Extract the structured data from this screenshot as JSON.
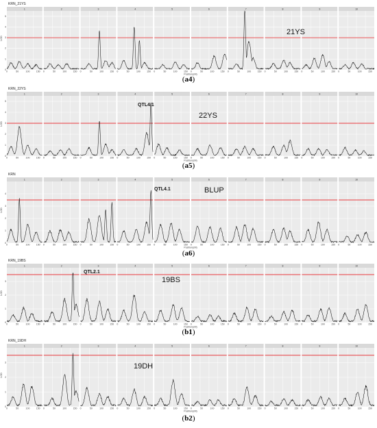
{
  "chart_data": [
    {
      "type": "line",
      "title": "KRN_21YS",
      "caption": "a4",
      "annotation": "21YS",
      "qtl_label": "",
      "xlabel": "Position(cM)",
      "ylabel": "LOD",
      "threshold": 3.0,
      "ylim": [
        0,
        5.5
      ],
      "yticks": [
        0,
        1,
        2,
        3,
        4,
        5
      ],
      "chromosomes": [
        "1",
        "2",
        "3",
        "4",
        "5",
        "6",
        "7",
        "8",
        "9",
        "10"
      ],
      "series_peaks": [
        [
          [
            20,
            0.6
          ],
          [
            60,
            0.7
          ],
          [
            100,
            0.5
          ],
          [
            140,
            0.4
          ]
        ],
        [
          [
            30,
            0.5
          ],
          [
            70,
            0.4
          ],
          [
            110,
            0.5
          ]
        ],
        [
          [
            40,
            0.5
          ],
          [
            90,
            3.5
          ],
          [
            120,
            0.8
          ],
          [
            150,
            0.6
          ]
        ],
        [
          [
            30,
            0.8
          ],
          [
            80,
            3.8
          ],
          [
            105,
            2.6
          ],
          [
            130,
            0.6
          ]
        ],
        [
          [
            40,
            0.4
          ],
          [
            100,
            0.7
          ],
          [
            140,
            0.4
          ]
        ],
        [
          [
            30,
            0.6
          ],
          [
            110,
            1.2
          ],
          [
            160,
            1.4
          ]
        ],
        [
          [
            40,
            0.5
          ],
          [
            80,
            5.4
          ],
          [
            100,
            2.5
          ],
          [
            120,
            1.0
          ]
        ],
        [
          [
            40,
            0.5
          ],
          [
            90,
            0.8
          ],
          [
            120,
            0.6
          ]
        ],
        [
          [
            20,
            0.4
          ],
          [
            60,
            1.0
          ],
          [
            100,
            1.3
          ],
          [
            130,
            0.7
          ]
        ],
        [
          [
            30,
            0.4
          ],
          [
            70,
            0.6
          ],
          [
            110,
            0.5
          ]
        ]
      ]
    },
    {
      "type": "line",
      "title": "KRN_22YS",
      "caption": "a5",
      "annotation": "22YS",
      "qtl_label": "QTL4.1",
      "xlabel": "Position(cM)",
      "ylabel": "LOD",
      "threshold": 3.0,
      "ylim": [
        0,
        5.5
      ],
      "yticks": [
        0,
        1,
        2,
        3,
        4,
        5
      ],
      "chromosomes": [
        "1",
        "2",
        "3",
        "4",
        "5",
        "6",
        "7",
        "8",
        "9",
        "10"
      ],
      "series_peaks": [
        [
          [
            20,
            0.8
          ],
          [
            60,
            2.5
          ],
          [
            100,
            0.9
          ],
          [
            140,
            0.6
          ]
        ],
        [
          [
            30,
            0.4
          ],
          [
            80,
            0.5
          ],
          [
            120,
            0.6
          ]
        ],
        [
          [
            40,
            0.7
          ],
          [
            90,
            3.1
          ],
          [
            120,
            1.0
          ],
          [
            150,
            0.5
          ]
        ],
        [
          [
            30,
            0.5
          ],
          [
            90,
            0.6
          ],
          [
            140,
            2.0
          ],
          [
            160,
            4.6
          ]
        ],
        [
          [
            20,
            1.0
          ],
          [
            60,
            0.7
          ],
          [
            120,
            0.5
          ]
        ],
        [
          [
            30,
            0.6
          ],
          [
            90,
            0.9
          ],
          [
            140,
            0.7
          ]
        ],
        [
          [
            40,
            0.6
          ],
          [
            80,
            0.8
          ],
          [
            120,
            0.6
          ]
        ],
        [
          [
            40,
            0.8
          ],
          [
            90,
            0.9
          ],
          [
            120,
            1.3
          ]
        ],
        [
          [
            30,
            0.6
          ],
          [
            80,
            0.6
          ],
          [
            120,
            0.5
          ]
        ],
        [
          [
            30,
            0.7
          ],
          [
            80,
            0.5
          ],
          [
            120,
            0.4
          ]
        ]
      ]
    },
    {
      "type": "line",
      "title": "KRN",
      "caption": "a6",
      "annotation": "BLUP",
      "qtl_label": "QTL4.1",
      "xlabel": "Position(cM)",
      "ylabel": "LOD",
      "threshold": 3.5,
      "ylim": [
        0,
        5.0
      ],
      "yticks": [
        0,
        1,
        2,
        3,
        4
      ],
      "chromosomes": [
        "1",
        "2",
        "3",
        "4",
        "5",
        "6",
        "7",
        "8",
        "9",
        "10"
      ],
      "series_peaks": [
        [
          [
            20,
            1.0
          ],
          [
            60,
            3.4
          ],
          [
            100,
            1.4
          ],
          [
            140,
            0.8
          ]
        ],
        [
          [
            30,
            0.9
          ],
          [
            80,
            1.0
          ],
          [
            120,
            0.8
          ]
        ],
        [
          [
            40,
            1.8
          ],
          [
            90,
            2.2
          ],
          [
            120,
            2.6
          ],
          [
            150,
            3.1
          ]
        ],
        [
          [
            30,
            0.9
          ],
          [
            90,
            1.0
          ],
          [
            140,
            1.6
          ],
          [
            160,
            4.1
          ]
        ],
        [
          [
            30,
            1.4
          ],
          [
            80,
            1.5
          ],
          [
            120,
            1.0
          ]
        ],
        [
          [
            30,
            1.3
          ],
          [
            90,
            1.2
          ],
          [
            140,
            1.1
          ]
        ],
        [
          [
            40,
            1.2
          ],
          [
            80,
            1.4
          ],
          [
            120,
            1.1
          ]
        ],
        [
          [
            40,
            1.0
          ],
          [
            90,
            1.1
          ],
          [
            120,
            0.9
          ]
        ],
        [
          [
            30,
            1.0
          ],
          [
            80,
            1.6
          ],
          [
            120,
            1.0
          ]
        ],
        [
          [
            40,
            0.5
          ],
          [
            90,
            0.6
          ],
          [
            130,
            0.8
          ]
        ]
      ]
    },
    {
      "type": "line",
      "title": "KRN_19BS",
      "caption": "b1",
      "annotation": "19BS",
      "qtl_label": "QTL2.1",
      "xlabel": "Position(cM)",
      "ylabel": "LOD",
      "threshold": 3.5,
      "ylim": [
        0,
        4.0
      ],
      "yticks": [
        0,
        1,
        2,
        3
      ],
      "chromosomes": [
        "1",
        "2",
        "3",
        "4",
        "5",
        "6",
        "7",
        "8",
        "9",
        "10"
      ],
      "series_peaks": [
        [
          [
            30,
            0.5
          ],
          [
            80,
            1.0
          ],
          [
            120,
            0.6
          ]
        ],
        [
          [
            40,
            0.7
          ],
          [
            100,
            1.6
          ],
          [
            140,
            3.6
          ],
          [
            155,
            1.2
          ]
        ],
        [
          [
            30,
            1.6
          ],
          [
            90,
            1.4
          ],
          [
            130,
            0.9
          ]
        ],
        [
          [
            30,
            0.8
          ],
          [
            80,
            1.9
          ],
          [
            130,
            0.7
          ]
        ],
        [
          [
            30,
            0.8
          ],
          [
            90,
            1.2
          ],
          [
            130,
            1.0
          ]
        ],
        [
          [
            30,
            0.4
          ],
          [
            90,
            0.5
          ],
          [
            130,
            0.4
          ]
        ],
        [
          [
            30,
            0.6
          ],
          [
            90,
            1.0
          ],
          [
            130,
            0.9
          ]
        ],
        [
          [
            30,
            0.4
          ],
          [
            90,
            0.7
          ],
          [
            130,
            0.8
          ]
        ],
        [
          [
            30,
            0.5
          ],
          [
            90,
            0.9
          ],
          [
            130,
            1.0
          ]
        ],
        [
          [
            30,
            0.6
          ],
          [
            90,
            0.9
          ],
          [
            130,
            1.2
          ]
        ]
      ]
    },
    {
      "type": "line",
      "title": "KRN_19DH",
      "caption": "b2",
      "annotation": "19DH",
      "qtl_label": "",
      "xlabel": "Position(cM)",
      "ylabel": "LOD",
      "threshold": 3.5,
      "ylim": [
        0,
        4.0
      ],
      "yticks": [
        0,
        1,
        2,
        3
      ],
      "chromosomes": [
        "1",
        "2",
        "3",
        "4",
        "5",
        "6",
        "7",
        "8",
        "9",
        "10"
      ],
      "series_peaks": [
        [
          [
            30,
            0.6
          ],
          [
            80,
            1.4
          ],
          [
            120,
            1.3
          ]
        ],
        [
          [
            40,
            0.5
          ],
          [
            100,
            2.0
          ],
          [
            140,
            3.4
          ],
          [
            155,
            1.0
          ]
        ],
        [
          [
            30,
            1.2
          ],
          [
            90,
            0.8
          ],
          [
            130,
            0.6
          ]
        ],
        [
          [
            30,
            0.5
          ],
          [
            80,
            1.1
          ],
          [
            130,
            0.6
          ]
        ],
        [
          [
            30,
            0.5
          ],
          [
            90,
            1.7
          ],
          [
            130,
            0.8
          ]
        ],
        [
          [
            30,
            0.3
          ],
          [
            90,
            0.4
          ],
          [
            130,
            0.4
          ]
        ],
        [
          [
            30,
            0.5
          ],
          [
            90,
            1.2
          ],
          [
            130,
            0.7
          ]
        ],
        [
          [
            30,
            0.3
          ],
          [
            90,
            0.5
          ],
          [
            130,
            0.4
          ]
        ],
        [
          [
            30,
            0.4
          ],
          [
            90,
            0.6
          ],
          [
            130,
            0.5
          ]
        ],
        [
          [
            30,
            0.5
          ],
          [
            90,
            0.9
          ],
          [
            130,
            1.3
          ]
        ]
      ]
    }
  ]
}
